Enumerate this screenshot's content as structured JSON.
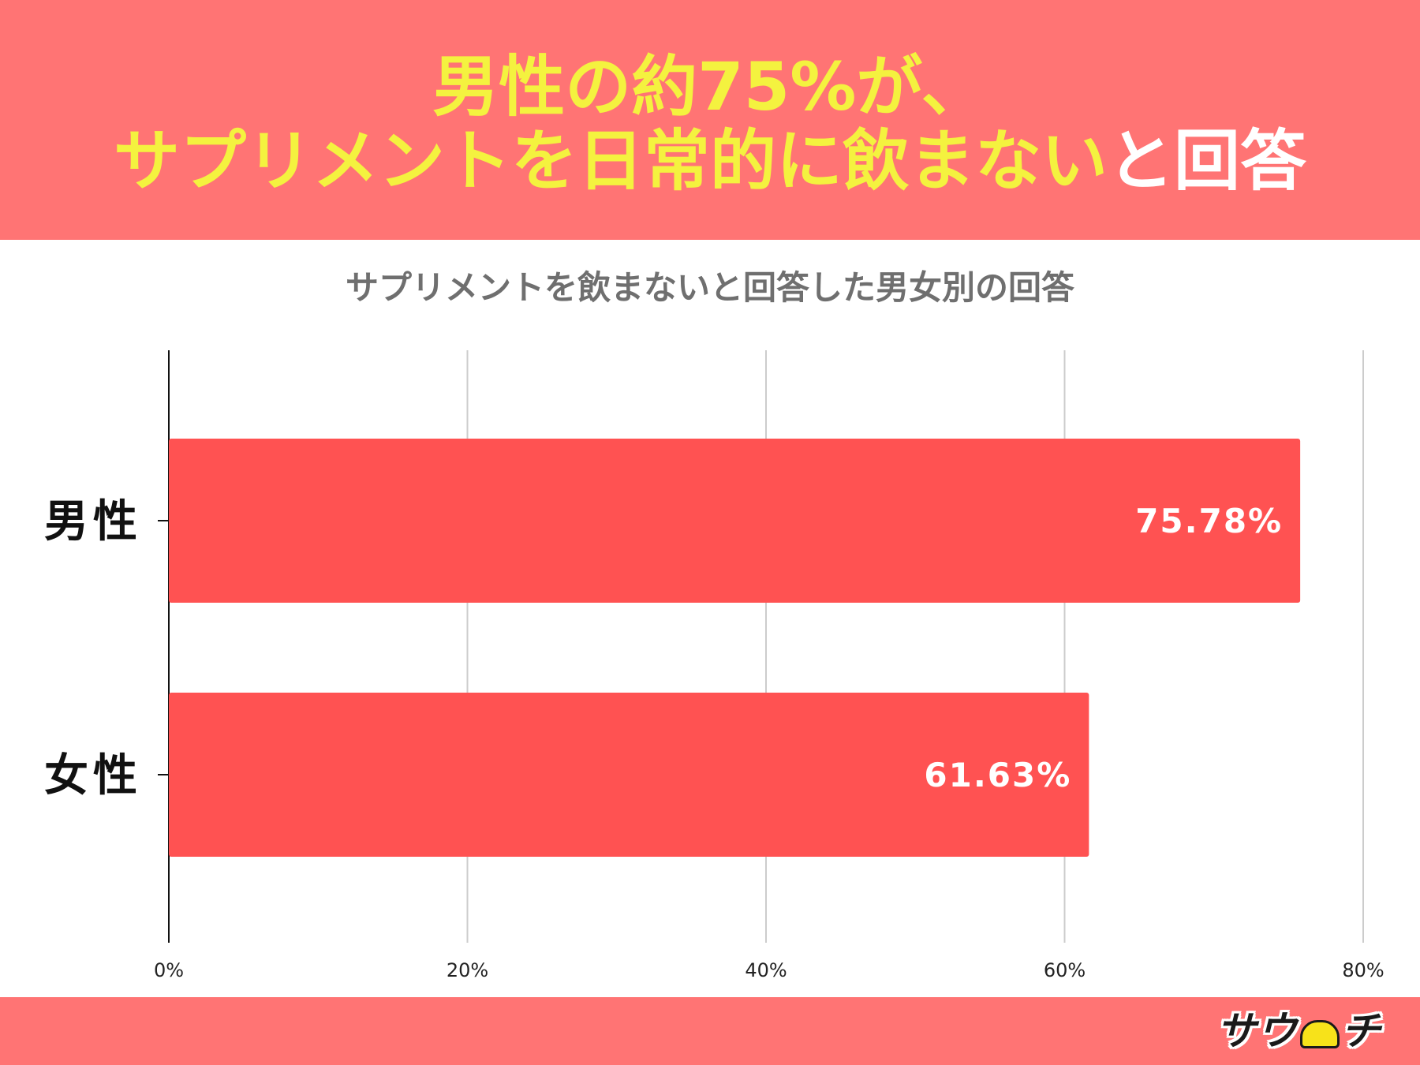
{
  "header": {
    "line1": "男性の約75%が、",
    "line2_highlight": "サプリメントを日常的に飲まない",
    "line2_rest": "と回答",
    "bg_color": "#ff7474",
    "highlight_color": "#f4f23f"
  },
  "footer": {
    "logo_text_left": "サウ",
    "logo_text_right": "チ",
    "logo_icon": "cap-mascot-icon"
  },
  "chart_data": {
    "type": "bar",
    "orientation": "horizontal",
    "title": "サプリメントを飲まないと回答した男女別の回答",
    "categories": [
      "男性",
      "女性"
    ],
    "values": [
      75.78,
      61.63
    ],
    "value_labels": [
      "75.78%",
      "61.63%"
    ],
    "xlim": [
      0,
      80
    ],
    "x_ticks": [
      0,
      20,
      40,
      60,
      80
    ],
    "x_tick_labels": [
      "0%",
      "20%",
      "40%",
      "60%",
      "80%"
    ],
    "grid": true,
    "bar_color": "#ff5252"
  }
}
